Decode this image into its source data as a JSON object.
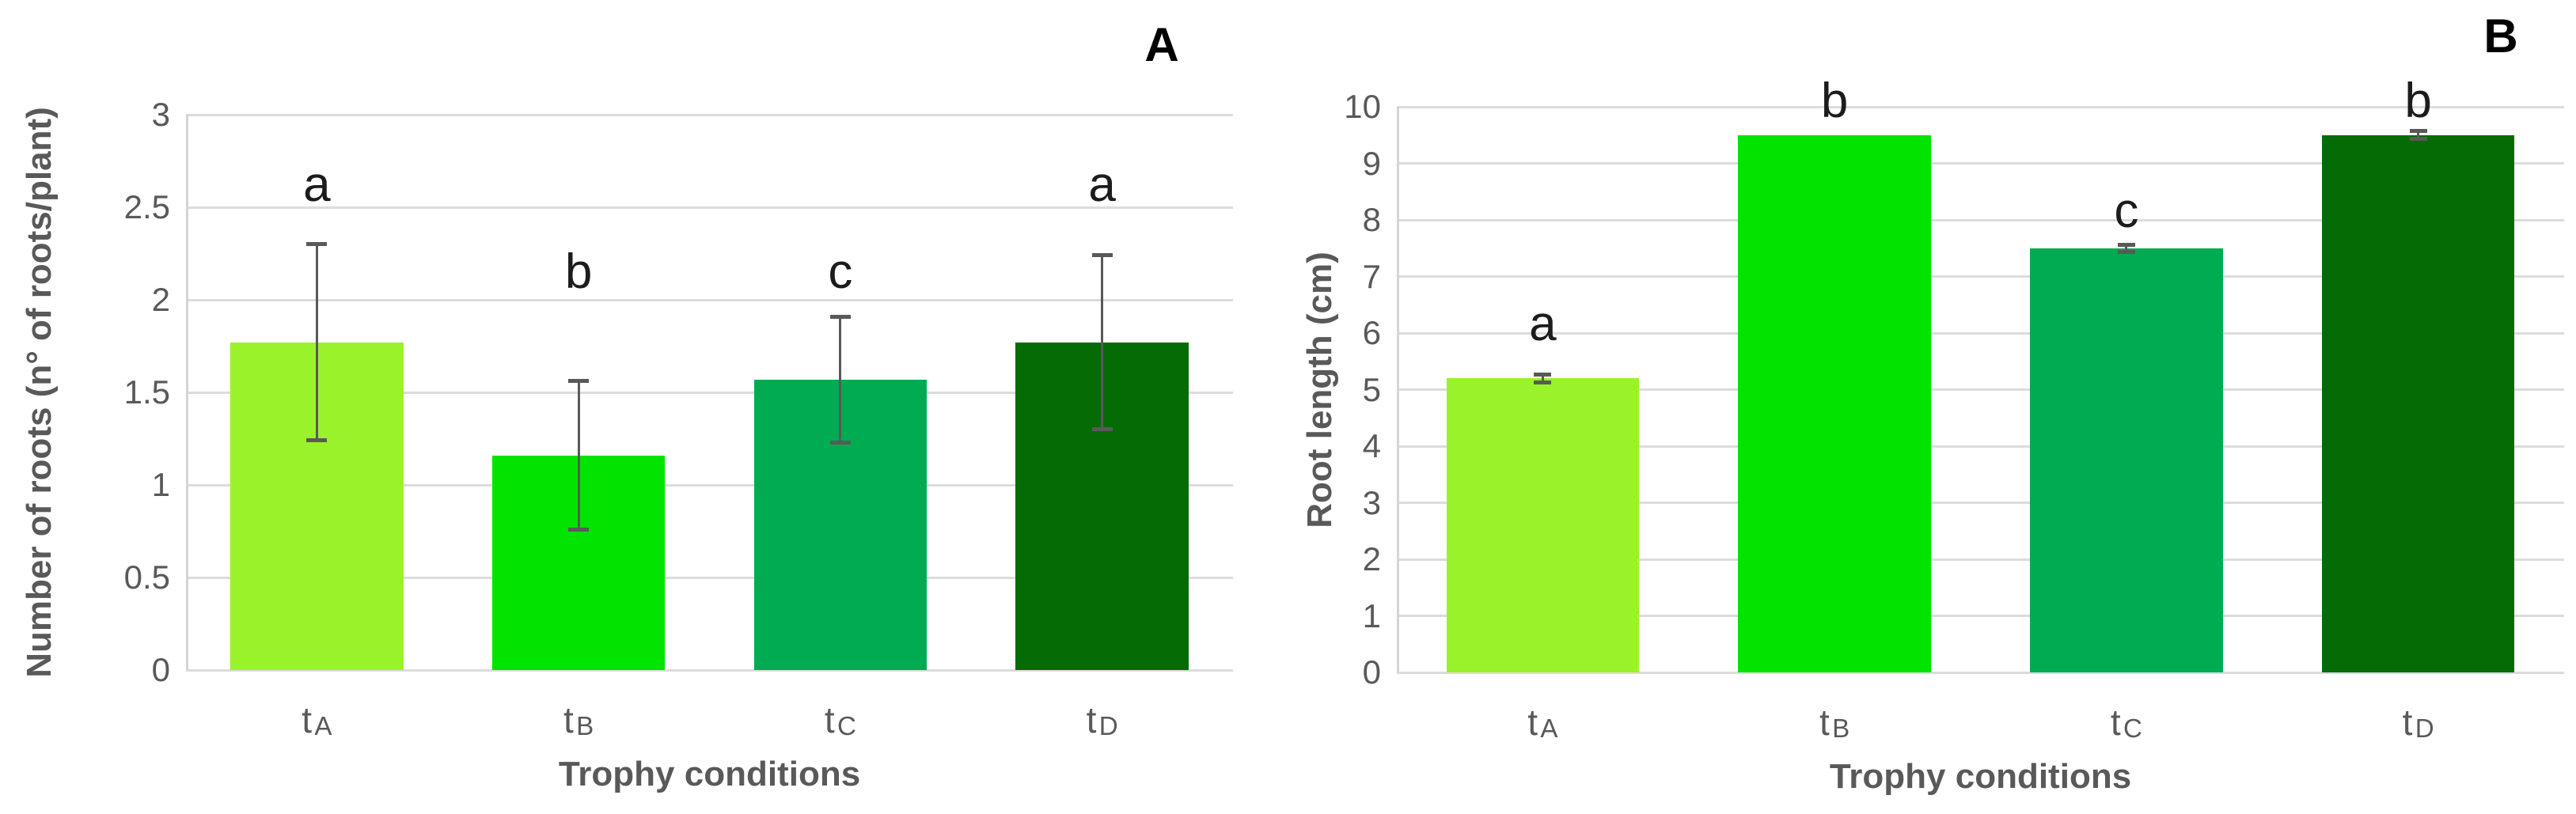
{
  "figure": {
    "background": "#ffffff"
  },
  "style": {
    "grid_color": "#DCDCDC",
    "axis_line_color": "#D4D4D4",
    "axis_text_color": "#595959",
    "error_bar_color": "#595959",
    "sig_letter_color": "#1C1C1C",
    "panel_label_color": "#000000"
  },
  "chart_data": [
    {
      "type": "bar",
      "panel_label": "A",
      "title": "",
      "xlabel": "Trophy conditions",
      "ylabel": "Number of roots (n° of roots/plant)",
      "ylim": [
        0,
        3
      ],
      "ytick_step": 0.5,
      "ytick_labels": [
        "0",
        "0.5",
        "1",
        "1.5",
        "2",
        "2.5",
        "3"
      ],
      "grid": true,
      "legend": null,
      "categories": [
        "tA",
        "tB",
        "tC",
        "tD"
      ],
      "values": [
        1.77,
        1.16,
        1.57,
        1.77
      ],
      "errors": [
        0.53,
        0.4,
        0.34,
        0.47
      ],
      "sig_letters": [
        "a",
        "b",
        "c",
        "a"
      ],
      "sig_letter_y": [
        2.62,
        2.15,
        2.15,
        2.62
      ],
      "bar_colors": [
        "#9AF22B",
        "#00E400",
        "#00AB51",
        "#056B05"
      ]
    },
    {
      "type": "bar",
      "panel_label": "B",
      "title": "",
      "xlabel": "Trophy conditions",
      "ylabel": "Root length (cm)",
      "ylim": [
        0,
        10
      ],
      "ytick_step": 1,
      "ytick_labels": [
        "0",
        "1",
        "2",
        "3",
        "4",
        "5",
        "6",
        "7",
        "8",
        "9",
        "10"
      ],
      "grid": true,
      "legend": null,
      "categories": [
        "tA",
        "tB",
        "tC",
        "tD"
      ],
      "values": [
        5.2,
        9.5,
        7.5,
        9.5
      ],
      "errors": [
        0.07,
        0,
        0.06,
        0.07
      ],
      "sig_letters": [
        "a",
        "b",
        "c",
        "b"
      ],
      "sig_letter_y": [
        6.15,
        10.1,
        8.15,
        10.1
      ],
      "bar_colors": [
        "#9AF22B",
        "#00E400",
        "#00AB51",
        "#056B05"
      ]
    }
  ]
}
